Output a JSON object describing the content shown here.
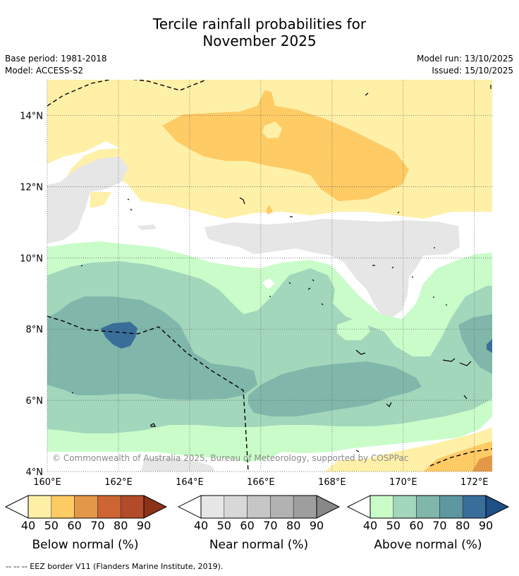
{
  "header": {
    "title_line1": "Tercile rainfall probabilities for",
    "title_line2": "November 2025",
    "base_period": "Base period: 1981-2018",
    "model": "Model: ACCESS-S2",
    "model_run": "Model run: 13/10/2025",
    "issued": "Issued: 15/10/2025"
  },
  "map": {
    "lat_labels": [
      "14°N",
      "12°N",
      "10°N",
      "8°N",
      "6°N",
      "4°N"
    ],
    "lon_labels": [
      "160°E",
      "162°E",
      "164°E",
      "166°E",
      "168°E",
      "170°E",
      "172°E"
    ],
    "lat_values": [
      14,
      12,
      10,
      8,
      6,
      4
    ],
    "lon_values": [
      160,
      162,
      164,
      166,
      168,
      170,
      172
    ],
    "lat_range": [
      4,
      15
    ],
    "lon_range": [
      160,
      172.5
    ],
    "copyright": "© Commonwealth of Australia 2025, Bureau of Meteorology, supported by COSPPac"
  },
  "colorbars": {
    "below": {
      "label": "Below normal (%)",
      "ticks": [
        "40",
        "50",
        "60",
        "70",
        "80",
        "90"
      ],
      "colors": [
        "#fff0a8",
        "#fecb65",
        "#e39847",
        "#cd6532",
        "#b14b2a",
        "#8c3218"
      ]
    },
    "near": {
      "label": "Near normal (%)",
      "ticks": [
        "40",
        "50",
        "60",
        "70",
        "80",
        "90"
      ],
      "colors": [
        "#e6e6e6",
        "#d8d8d8",
        "#c6c6c6",
        "#b2b2b2",
        "#9e9e9e",
        "#888888"
      ]
    },
    "above": {
      "label": "Above normal (%)",
      "ticks": [
        "40",
        "50",
        "60",
        "70",
        "80",
        "90"
      ],
      "colors": [
        "#c9fcc9",
        "#a3d7bc",
        "#80b7aa",
        "#5e97a0",
        "#3a6e9a",
        "#1e4f85"
      ]
    }
  },
  "footnote": "--  --  -- EEZ border V11 (Flanders Marine Institute, 2019)."
}
